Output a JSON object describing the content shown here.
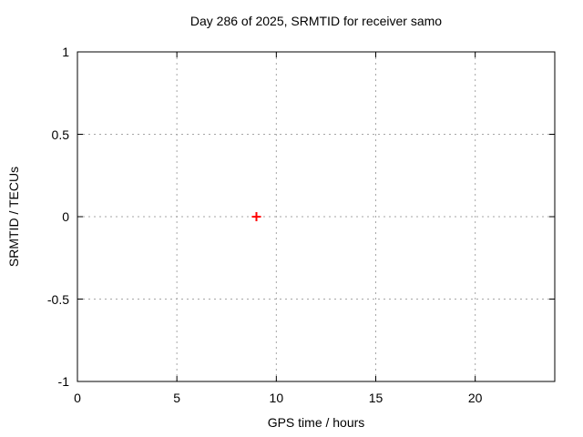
{
  "chart_data": {
    "type": "scatter",
    "title": "Day 286 of 2025, SRMTID for receiver samo",
    "xlabel": "GPS time / hours",
    "ylabel": "SRMTID / TECUs",
    "xlim": [
      0,
      24
    ],
    "ylim": [
      -1,
      1
    ],
    "xticks": [
      0,
      5,
      10,
      15,
      20
    ],
    "xtick_labels": [
      "0",
      "5",
      "10",
      "15",
      "20"
    ],
    "yticks": [
      -1,
      -0.5,
      0,
      0.5,
      1
    ],
    "ytick_labels": [
      "-1",
      "-0.5",
      "0",
      "0.5",
      "1"
    ],
    "grid": true,
    "grid_style": "dotted",
    "legend": "none",
    "series": [
      {
        "name": "SRMTID",
        "marker": "plus",
        "color": "#ff0000",
        "points": [
          {
            "x": 9,
            "y": 0
          }
        ]
      }
    ]
  },
  "colors": {
    "background": "#ffffff",
    "border": "#000000",
    "grid": "#a6a6a6",
    "text": "#000000",
    "marker": "#ff0000"
  }
}
